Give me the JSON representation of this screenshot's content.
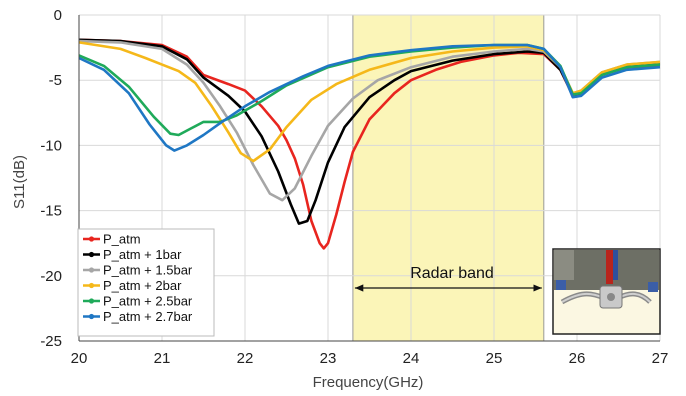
{
  "chart_data": {
    "type": "line",
    "xlabel": "Frequency(GHz)",
    "ylabel": "S11(dB)",
    "xlim": [
      20,
      27
    ],
    "ylim": [
      -25,
      0
    ],
    "xticks": [
      20,
      21,
      22,
      23,
      24,
      25,
      26,
      27
    ],
    "yticks": [
      0,
      -5,
      -10,
      -15,
      -20,
      -25
    ],
    "grid": true,
    "legend_position": "bottom-left",
    "band": {
      "label": "Radar band",
      "from": 23.3,
      "to": 25.6,
      "color": "#fbf5b8"
    },
    "inset_photo": "device-photo",
    "series": [
      {
        "name": "P_atm",
        "color": "#e8251f",
        "points": [
          [
            20,
            -1.9
          ],
          [
            20.5,
            -2.0
          ],
          [
            21,
            -2.3
          ],
          [
            21.3,
            -3.2
          ],
          [
            21.5,
            -4.6
          ],
          [
            21.8,
            -5.3
          ],
          [
            22,
            -5.8
          ],
          [
            22.2,
            -7
          ],
          [
            22.4,
            -8.5
          ],
          [
            22.5,
            -9.6
          ],
          [
            22.6,
            -11
          ],
          [
            22.7,
            -13
          ],
          [
            22.8,
            -15.8
          ],
          [
            22.9,
            -17.5
          ],
          [
            22.95,
            -17.9
          ],
          [
            23,
            -17.5
          ],
          [
            23.1,
            -15.3
          ],
          [
            23.2,
            -12.8
          ],
          [
            23.3,
            -10.5
          ],
          [
            23.5,
            -8
          ],
          [
            23.8,
            -6
          ],
          [
            24,
            -5
          ],
          [
            24.3,
            -4.2
          ],
          [
            24.6,
            -3.6
          ],
          [
            25,
            -3.1
          ],
          [
            25.3,
            -2.9
          ],
          [
            25.6,
            -3.0
          ],
          [
            25.8,
            -4.2
          ],
          [
            25.95,
            -6.2
          ],
          [
            26.05,
            -6.0
          ],
          [
            26.3,
            -4.5
          ],
          [
            26.6,
            -4.0
          ],
          [
            27,
            -3.9
          ]
        ]
      },
      {
        "name": "P_atm + 1bar",
        "color": "#000000",
        "points": [
          [
            20,
            -1.9
          ],
          [
            20.5,
            -2.0
          ],
          [
            21,
            -2.4
          ],
          [
            21.3,
            -3.4
          ],
          [
            21.5,
            -4.8
          ],
          [
            21.8,
            -6.2
          ],
          [
            22,
            -7.4
          ],
          [
            22.2,
            -9.3
          ],
          [
            22.4,
            -12
          ],
          [
            22.55,
            -14.5
          ],
          [
            22.65,
            -16.0
          ],
          [
            22.75,
            -15.8
          ],
          [
            22.85,
            -14.2
          ],
          [
            23,
            -11.3
          ],
          [
            23.2,
            -8.6
          ],
          [
            23.5,
            -6.3
          ],
          [
            23.8,
            -5
          ],
          [
            24,
            -4.3
          ],
          [
            24.5,
            -3.5
          ],
          [
            25,
            -3.0
          ],
          [
            25.4,
            -2.8
          ],
          [
            25.6,
            -2.9
          ],
          [
            25.8,
            -4.2
          ],
          [
            25.95,
            -6.1
          ],
          [
            26.05,
            -6.0
          ],
          [
            26.3,
            -4.5
          ],
          [
            26.6,
            -3.9
          ],
          [
            27,
            -3.7
          ]
        ]
      },
      {
        "name": "P_atm + 1.5bar",
        "color": "#a6a6a6",
        "points": [
          [
            20,
            -2.0
          ],
          [
            20.5,
            -2.1
          ],
          [
            21,
            -2.6
          ],
          [
            21.3,
            -3.8
          ],
          [
            21.5,
            -5.2
          ],
          [
            21.7,
            -7
          ],
          [
            21.9,
            -9
          ],
          [
            22.1,
            -11.5
          ],
          [
            22.3,
            -13.7
          ],
          [
            22.45,
            -14.2
          ],
          [
            22.6,
            -13.3
          ],
          [
            22.8,
            -10.8
          ],
          [
            23,
            -8.5
          ],
          [
            23.3,
            -6.4
          ],
          [
            23.6,
            -5
          ],
          [
            24,
            -4.0
          ],
          [
            24.5,
            -3.2
          ],
          [
            25,
            -2.8
          ],
          [
            25.4,
            -2.6
          ],
          [
            25.6,
            -2.8
          ],
          [
            25.8,
            -4.0
          ],
          [
            25.95,
            -6.0
          ],
          [
            26.05,
            -5.8
          ],
          [
            26.3,
            -4.4
          ],
          [
            26.6,
            -3.8
          ],
          [
            27,
            -3.6
          ]
        ]
      },
      {
        "name": "P_atm + 2bar",
        "color": "#f5b81a",
        "points": [
          [
            20,
            -2.1
          ],
          [
            20.5,
            -2.6
          ],
          [
            20.8,
            -3.3
          ],
          [
            21,
            -3.8
          ],
          [
            21.2,
            -4.3
          ],
          [
            21.4,
            -5.2
          ],
          [
            21.6,
            -7
          ],
          [
            21.8,
            -9
          ],
          [
            21.95,
            -10.6
          ],
          [
            22.1,
            -11.2
          ],
          [
            22.3,
            -10.3
          ],
          [
            22.5,
            -8.6
          ],
          [
            22.8,
            -6.5
          ],
          [
            23.1,
            -5.3
          ],
          [
            23.5,
            -4.2
          ],
          [
            24,
            -3.3
          ],
          [
            24.5,
            -2.8
          ],
          [
            25,
            -2.5
          ],
          [
            25.4,
            -2.4
          ],
          [
            25.6,
            -2.7
          ],
          [
            25.8,
            -4.0
          ],
          [
            25.95,
            -6.0
          ],
          [
            26.05,
            -5.8
          ],
          [
            26.3,
            -4.4
          ],
          [
            26.6,
            -3.8
          ],
          [
            27,
            -3.6
          ]
        ]
      },
      {
        "name": "P_atm + 2.5bar",
        "color": "#1faa5a",
        "points": [
          [
            20,
            -3.1
          ],
          [
            20.3,
            -3.9
          ],
          [
            20.6,
            -5.5
          ],
          [
            20.9,
            -7.8
          ],
          [
            21.1,
            -9.1
          ],
          [
            21.2,
            -9.2
          ],
          [
            21.35,
            -8.7
          ],
          [
            21.5,
            -8.2
          ],
          [
            21.7,
            -8.2
          ],
          [
            21.9,
            -7.7
          ],
          [
            22.2,
            -6.6
          ],
          [
            22.5,
            -5.4
          ],
          [
            23,
            -4.0
          ],
          [
            23.5,
            -3.2
          ],
          [
            24,
            -2.8
          ],
          [
            24.5,
            -2.5
          ],
          [
            25,
            -2.3
          ],
          [
            25.4,
            -2.3
          ],
          [
            25.6,
            -2.6
          ],
          [
            25.8,
            -3.9
          ],
          [
            25.95,
            -6.1
          ],
          [
            26.05,
            -6.0
          ],
          [
            26.3,
            -4.6
          ],
          [
            26.6,
            -4.0
          ],
          [
            27,
            -3.8
          ]
        ]
      },
      {
        "name": "P_atm + 2.7bar",
        "color": "#1f77c4",
        "points": [
          [
            20,
            -3.3
          ],
          [
            20.3,
            -4.2
          ],
          [
            20.6,
            -6.0
          ],
          [
            20.85,
            -8.4
          ],
          [
            21.05,
            -10.0
          ],
          [
            21.15,
            -10.4
          ],
          [
            21.3,
            -10.0
          ],
          [
            21.5,
            -9.2
          ],
          [
            21.7,
            -8.3
          ],
          [
            22,
            -7.0
          ],
          [
            22.3,
            -5.9
          ],
          [
            22.7,
            -4.7
          ],
          [
            23,
            -3.9
          ],
          [
            23.5,
            -3.1
          ],
          [
            24,
            -2.7
          ],
          [
            24.5,
            -2.4
          ],
          [
            25,
            -2.3
          ],
          [
            25.4,
            -2.3
          ],
          [
            25.6,
            -2.6
          ],
          [
            25.8,
            -4.0
          ],
          [
            25.95,
            -6.3
          ],
          [
            26.05,
            -6.2
          ],
          [
            26.3,
            -4.8
          ],
          [
            26.6,
            -4.2
          ],
          [
            27,
            -4.0
          ]
        ]
      }
    ]
  }
}
